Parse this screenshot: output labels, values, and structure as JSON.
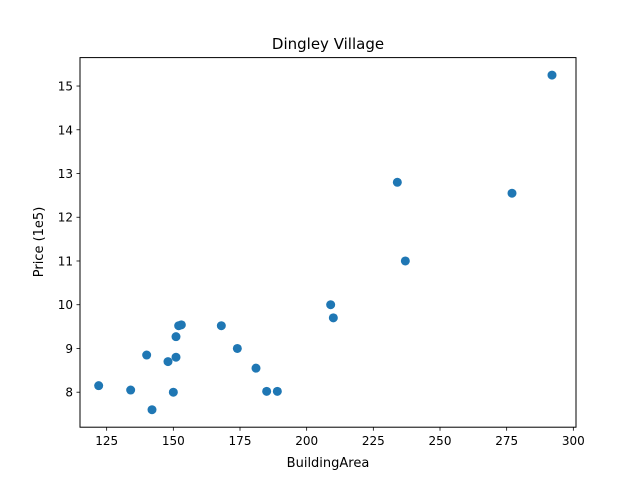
{
  "chart_data": {
    "type": "scatter",
    "title": "Dingley Village",
    "xlabel": "BuildingArea",
    "ylabel": "Price (1e5)",
    "xlim": [
      115,
      301
    ],
    "ylim": [
      7.2,
      15.65
    ],
    "xticks": [
      125,
      150,
      175,
      200,
      225,
      250,
      275,
      300
    ],
    "yticks": [
      8,
      9,
      10,
      11,
      12,
      13,
      14,
      15
    ],
    "grid": false,
    "marker_color": "#1f77b4",
    "points": [
      {
        "x": 122,
        "y": 8.15
      },
      {
        "x": 134,
        "y": 8.05
      },
      {
        "x": 140,
        "y": 8.85
      },
      {
        "x": 142,
        "y": 7.6
      },
      {
        "x": 148,
        "y": 8.7
      },
      {
        "x": 150,
        "y": 8.0
      },
      {
        "x": 151,
        "y": 8.8
      },
      {
        "x": 151,
        "y": 9.27
      },
      {
        "x": 152,
        "y": 9.52
      },
      {
        "x": 153,
        "y": 9.54
      },
      {
        "x": 168,
        "y": 9.52
      },
      {
        "x": 174,
        "y": 9.0
      },
      {
        "x": 181,
        "y": 8.55
      },
      {
        "x": 185,
        "y": 8.02
      },
      {
        "x": 189,
        "y": 8.02
      },
      {
        "x": 209,
        "y": 10.0
      },
      {
        "x": 210,
        "y": 9.7
      },
      {
        "x": 234,
        "y": 12.8
      },
      {
        "x": 237,
        "y": 11.0
      },
      {
        "x": 277,
        "y": 12.55
      },
      {
        "x": 292,
        "y": 15.25
      }
    ]
  }
}
